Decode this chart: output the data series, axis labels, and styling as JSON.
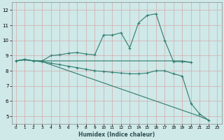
{
  "xlabel": "Humidex (Indice chaleur)",
  "xlim": [
    -0.5,
    23.5
  ],
  "ylim": [
    4.5,
    12.5
  ],
  "yticks": [
    5,
    6,
    7,
    8,
    9,
    10,
    11,
    12
  ],
  "xticks": [
    0,
    1,
    2,
    3,
    4,
    5,
    6,
    7,
    8,
    9,
    10,
    11,
    12,
    13,
    14,
    15,
    16,
    17,
    18,
    19,
    20,
    21,
    22,
    23
  ],
  "bg_color": "#cfe8e8",
  "grid_color": "#d4aaaa",
  "line_color": "#2e7d6e",
  "lines": [
    {
      "x": [
        0,
        1,
        2,
        3,
        4,
        5,
        6,
        7,
        8,
        9,
        10,
        11,
        12,
        13,
        14,
        15,
        16,
        17,
        18,
        19,
        20
      ],
      "y": [
        8.65,
        8.75,
        8.65,
        8.65,
        9.0,
        9.05,
        9.15,
        9.2,
        9.1,
        9.05,
        10.35,
        10.35,
        10.5,
        9.5,
        11.15,
        11.65,
        11.75,
        10.0,
        8.6,
        8.6,
        8.55
      ],
      "markers": true
    },
    {
      "x": [
        0,
        1,
        2,
        3,
        4,
        5,
        6,
        7,
        8,
        9,
        10,
        11,
        12,
        13,
        14,
        15,
        16,
        17,
        18,
        19,
        20
      ],
      "y": [
        8.65,
        8.75,
        8.65,
        8.65,
        8.65,
        8.65,
        8.65,
        8.65,
        8.65,
        8.65,
        8.65,
        8.65,
        8.65,
        8.65,
        8.65,
        8.65,
        8.65,
        8.65,
        8.65,
        8.65,
        8.55
      ],
      "markers": false
    },
    {
      "x": [
        0,
        1,
        2,
        3,
        4,
        5,
        6,
        7,
        8,
        9,
        10,
        11,
        12,
        13,
        14,
        15,
        16,
        17,
        18,
        19,
        20,
        21,
        22
      ],
      "y": [
        8.65,
        8.72,
        8.65,
        8.6,
        8.5,
        8.4,
        8.3,
        8.2,
        8.1,
        8.0,
        7.95,
        7.9,
        7.85,
        7.8,
        7.8,
        7.85,
        8.0,
        8.0,
        7.8,
        7.65,
        5.85,
        5.15,
        4.75
      ],
      "markers": true
    },
    {
      "x": [
        0,
        1,
        2,
        3,
        4,
        5,
        6,
        7,
        8,
        9,
        10,
        11,
        12,
        13,
        14,
        15,
        16,
        17,
        18,
        19,
        20,
        21,
        22
      ],
      "y": [
        8.65,
        8.72,
        8.65,
        8.6,
        8.4,
        8.2,
        8.0,
        7.8,
        7.6,
        7.4,
        7.2,
        7.0,
        6.8,
        6.6,
        6.4,
        6.2,
        6.0,
        5.8,
        5.6,
        5.4,
        5.2,
        5.0,
        4.75
      ],
      "markers": false
    }
  ]
}
